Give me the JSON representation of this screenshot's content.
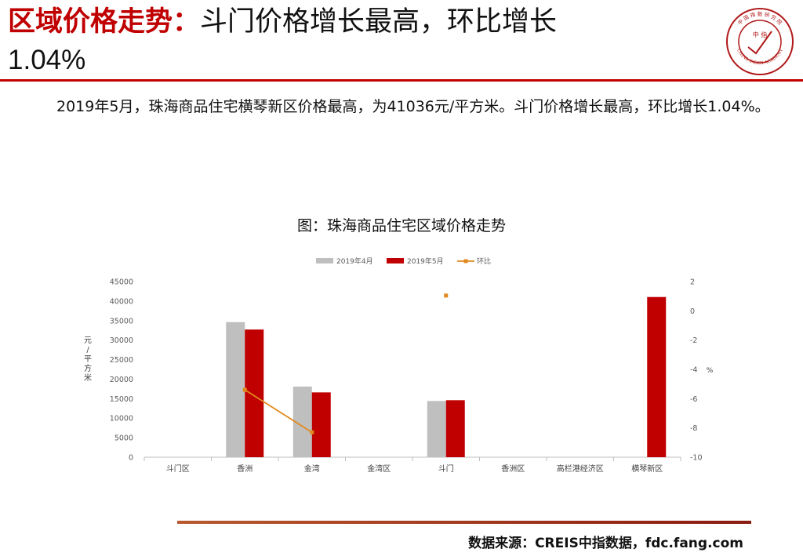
{
  "header": {
    "title_highlight": "区域价格走势：",
    "title_rest": "斗门价格增长最高，环比增长",
    "title_line2": "1.04%"
  },
  "logo": {
    "icon": "china-index-academy-seal-icon",
    "center_text": "中 指",
    "ring_text": "中 国 指 数 研 究 院",
    "ring_text_en": "CHINA INDEX ACADEMY"
  },
  "summary": {
    "text": "2019年5月，珠海商品住宅横琴新区价格最高，为41036元/平方米。斗门价格增长最高，环比增长1.04%。"
  },
  "chart_title": "图：珠海商品住宅区域价格走势",
  "chart_data": {
    "type": "bar",
    "title": "图：珠海商品住宅区域价格走势",
    "categories": [
      "斗门区",
      "香洲",
      "金湾",
      "金湾区",
      "斗门",
      "香洲区",
      "高栏港经济区",
      "横琴新区"
    ],
    "series": [
      {
        "name": "2019年4月",
        "type": "bar",
        "axis": "left",
        "color": "#bfbfbf",
        "values": [
          null,
          34600,
          18100,
          null,
          14400,
          null,
          null,
          null
        ]
      },
      {
        "name": "2019年5月",
        "type": "bar",
        "axis": "left",
        "color": "#c00000",
        "values": [
          null,
          32700,
          16600,
          null,
          14600,
          null,
          null,
          41036
        ]
      },
      {
        "name": "环比",
        "type": "line",
        "axis": "right",
        "color": "#e08a1e",
        "values": [
          null,
          -5.4,
          -8.3,
          null,
          1.04,
          null,
          null,
          null
        ]
      }
    ],
    "ylabel": "元/平方米",
    "y2label": "%",
    "ylim": [
      0,
      45000
    ],
    "yticks": [
      0,
      5000,
      10000,
      15000,
      20000,
      25000,
      30000,
      35000,
      40000,
      45000
    ],
    "y2lim": [
      -10,
      2
    ],
    "y2ticks": [
      -10,
      -8,
      -6,
      -4,
      -2,
      0,
      2
    ],
    "grid": false,
    "legend": "top"
  },
  "footer": {
    "source": "数据来源：CREIS中指数据，fdc.fang.com"
  }
}
